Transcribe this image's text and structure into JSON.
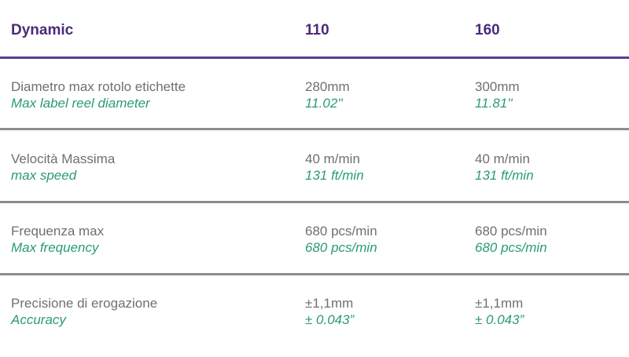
{
  "header": {
    "model_label": "Dynamic",
    "col_110": "110",
    "col_160": "160"
  },
  "rows": [
    {
      "label_it": "Diametro max rotolo etichette",
      "label_en": "Max label reel diameter",
      "v110_it": "280mm",
      "v110_en": "11.02''",
      "v160_it": "300mm",
      "v160_en": "11.81''"
    },
    {
      "label_it": "Velocità Massima",
      "label_en": "max speed",
      "v110_it": "40 m/min",
      "v110_en": "131 ft/min",
      "v160_it": "40 m/min",
      "v160_en": "131 ft/min"
    },
    {
      "label_it": "Frequenza max",
      "label_en": "Max frequency",
      "v110_it": "680 pcs/min",
      "v110_en": "680 pcs/min",
      "v160_it": "680 pcs/min",
      "v160_en": "680 pcs/min"
    },
    {
      "label_it": "Precisione di erogazione",
      "label_en": "Accuracy",
      "v110_it": "±1,1mm",
      "v110_en": "± 0.043”",
      "v160_it": "±1,1mm",
      "v160_en": "± 0.043”"
    }
  ],
  "colors": {
    "header_text": "#4b2a7b",
    "header_rule": "#5e3c8c",
    "italian_text": "#6f6f6f",
    "english_text": "#2a9a7a",
    "row_rule": "#8c8c8c"
  }
}
